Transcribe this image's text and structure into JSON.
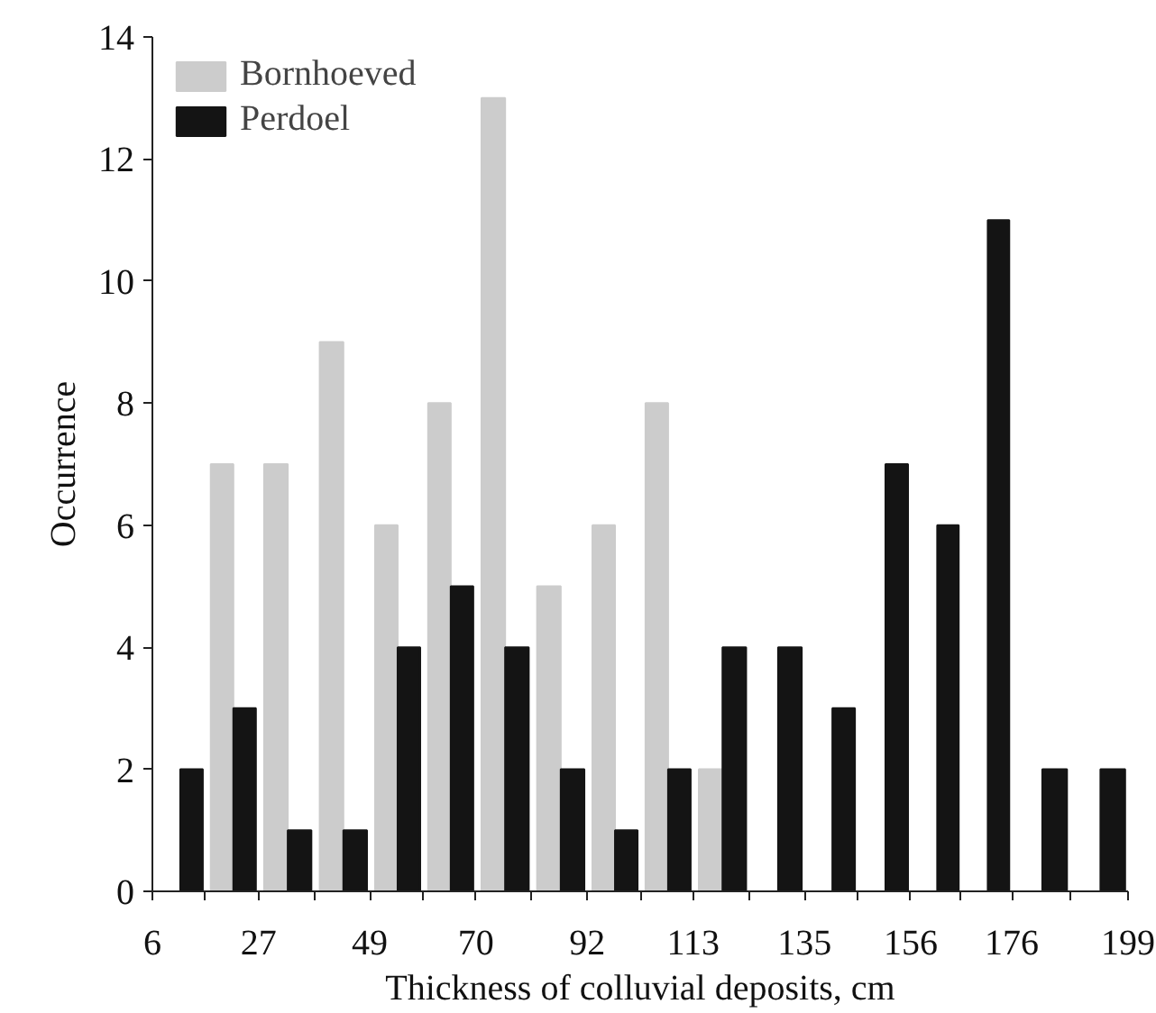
{
  "chart_data": {
    "type": "histogram",
    "xlabel": "Thickness of colluvial deposits, cm",
    "ylabel": "Occurrence",
    "bins": [
      6,
      16.5,
      27,
      38,
      49,
      59.5,
      70,
      81,
      92,
      102.5,
      113,
      124,
      135,
      145.5,
      156,
      166,
      176,
      187.5,
      199
    ],
    "series": [
      {
        "name": "Bornhoeved",
        "color": "#cccccc",
        "values": [
          0,
          7,
          7,
          9,
          6,
          8,
          13,
          5,
          6,
          8,
          2,
          0,
          0,
          0,
          0,
          0,
          0,
          0
        ]
      },
      {
        "name": "Perdoel",
        "color": "#141414",
        "values": [
          2,
          3,
          1,
          1,
          4,
          5,
          4,
          2,
          1,
          2,
          4,
          4,
          3,
          7,
          6,
          11,
          2,
          2
        ]
      }
    ],
    "xlim": [
      6,
      199
    ],
    "xticks": [
      6,
      {
        "value": 16.5,
        "label": null
      },
      27,
      {
        "value": 38,
        "label": null
      },
      49,
      {
        "value": 59.5,
        "label": null
      },
      70,
      {
        "value": 81,
        "label": null
      },
      92,
      {
        "value": 102.5,
        "label": null
      },
      113,
      {
        "value": 124,
        "label": null
      },
      135,
      {
        "value": 145.5,
        "label": null
      },
      156,
      {
        "value": 166,
        "label": null
      },
      176,
      {
        "value": 187.5,
        "label": null
      },
      199
    ],
    "ylim": [
      0,
      14
    ],
    "yticks": [
      0,
      2,
      4,
      6,
      8,
      10,
      12,
      14
    ],
    "grid": false,
    "legend": "top left"
  }
}
